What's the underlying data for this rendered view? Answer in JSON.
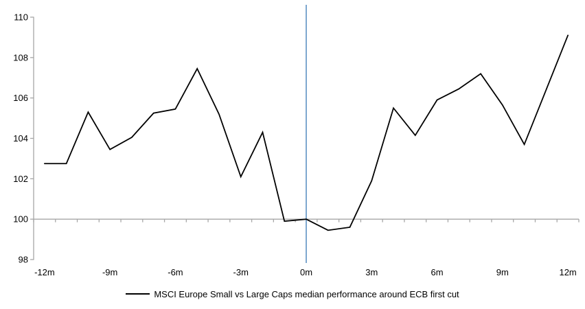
{
  "chart_data": {
    "type": "line",
    "title": "",
    "xlabel": "",
    "ylabel": "",
    "x_months": [
      -12,
      -11,
      -10,
      -9,
      -8,
      -7,
      -6,
      -5,
      -4,
      -3,
      -2,
      -1,
      0,
      1,
      2,
      3,
      4,
      5,
      6,
      7,
      8,
      9,
      10,
      11,
      12
    ],
    "series": [
      {
        "name": "MSCI Europe Small vs Large Caps median performance around ECB first cut",
        "color": "#000000",
        "values": [
          102.75,
          102.75,
          105.3,
          103.45,
          104.05,
          105.25,
          105.45,
          107.45,
          105.2,
          102.1,
          104.3,
          99.9,
          100.0,
          99.45,
          99.6,
          101.9,
          105.5,
          104.15,
          105.9,
          106.45,
          107.2,
          105.65,
          103.7,
          106.4,
          109.1
        ]
      }
    ],
    "x_tick_labels": [
      {
        "month": -12,
        "label": "-12m"
      },
      {
        "month": -9,
        "label": "-9m"
      },
      {
        "month": -6,
        "label": "-6m"
      },
      {
        "month": -3,
        "label": "-3m"
      },
      {
        "month": 0,
        "label": "0m"
      },
      {
        "month": 3,
        "label": "3m"
      },
      {
        "month": 6,
        "label": "6m"
      },
      {
        "month": 9,
        "label": "9m"
      },
      {
        "month": 12,
        "label": "12m"
      }
    ],
    "y_tick_labels": [
      "98",
      "100",
      "102",
      "104",
      "106",
      "108",
      "110"
    ],
    "ylim": [
      98,
      110
    ],
    "y_tick_step": 2,
    "x_axis_cross_y": 100,
    "event_line": {
      "month": 0,
      "color": "#7DA7CF"
    },
    "axis_color": "#A6A6A6",
    "grid": false,
    "legend_position": "bottom-center"
  }
}
